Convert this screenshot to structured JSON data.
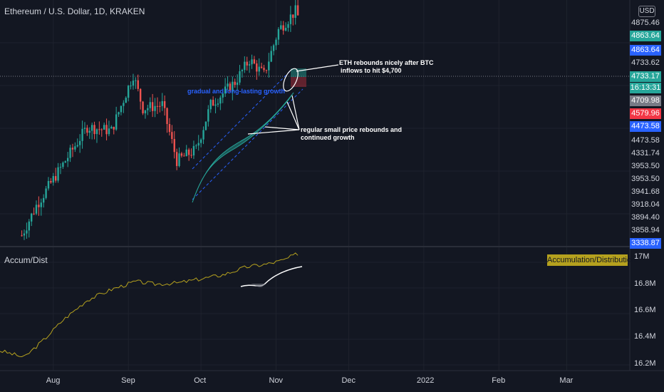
{
  "title": "Ethereum / U.S. Dollar, 1D, KRAKEN",
  "currency": "USD",
  "indicator": {
    "name": "Accum/Dist",
    "badge": "Accumulation/Distribution",
    "color": "#b5a11e"
  },
  "price_labels": [
    {
      "text": "4875.46",
      "bg": "",
      "color": "#d1d4dc"
    },
    {
      "text": "4863.64",
      "bg": "#26a69a",
      "color": "#ffffff"
    },
    {
      "text": "4863.64",
      "bg": "#2962ff",
      "color": "#ffffff"
    },
    {
      "text": "4733.62",
      "bg": "",
      "color": "#d1d4dc"
    },
    {
      "text": "4733.17",
      "bg": "#26a69a",
      "color": "#ffffff"
    },
    {
      "text": "16:13:31",
      "bg": "#26a69a",
      "color": "#ffffff"
    },
    {
      "text": "4709.98",
      "bg": "#787b86",
      "color": "#ffffff"
    },
    {
      "text": "4579.96",
      "bg": "#f23645",
      "color": "#ffffff"
    },
    {
      "text": "4473.58",
      "bg": "#2962ff",
      "color": "#ffffff"
    },
    {
      "text": "4473.58",
      "bg": "",
      "color": "#d1d4dc"
    },
    {
      "text": "4331.74",
      "bg": "",
      "color": "#d1d4dc"
    },
    {
      "text": "3953.50",
      "bg": "",
      "color": "#d1d4dc"
    },
    {
      "text": "3953.50",
      "bg": "",
      "color": "#d1d4dc"
    },
    {
      "text": "3941.68",
      "bg": "",
      "color": "#d1d4dc"
    },
    {
      "text": "3918.04",
      "bg": "",
      "color": "#d1d4dc"
    },
    {
      "text": "3894.40",
      "bg": "",
      "color": "#d1d4dc"
    },
    {
      "text": "3858.94",
      "bg": "",
      "color": "#d1d4dc"
    },
    {
      "text": "3338.87",
      "bg": "#2962ff",
      "color": "#ffffff"
    }
  ],
  "x_ticks": [
    "Aug",
    "Sep",
    "Oct",
    "Nov",
    "Dec",
    "2022",
    "Feb",
    "Mar"
  ],
  "ad_ticks": [
    "17M",
    "16.8M",
    "16.6M",
    "16.4M",
    "16.2M"
  ],
  "annotations": {
    "top": [
      "ETH rebounds nicely after BTC",
      "inflows to hit $4,700"
    ],
    "mid": [
      "regular small price rebounds and",
      "continued growth"
    ],
    "channel": "gradual and long-lasting growth"
  },
  "chart_data": [
    {
      "type": "candlestick",
      "title": "Ethereum / U.S. Dollar, 1D, KRAKEN",
      "x_range": [
        "2021-07-10",
        "2022-03-20"
      ],
      "approx_close_path": [
        {
          "x": "2021-07-19",
          "y": 1800
        },
        {
          "x": "2021-07-25",
          "y": 2200
        },
        {
          "x": "2021-08-01",
          "y": 2550
        },
        {
          "x": "2021-08-15",
          "y": 3250
        },
        {
          "x": "2021-08-25",
          "y": 3200
        },
        {
          "x": "2021-09-03",
          "y": 3950
        },
        {
          "x": "2021-09-07",
          "y": 3500
        },
        {
          "x": "2021-09-15",
          "y": 3550
        },
        {
          "x": "2021-09-21",
          "y": 2800
        },
        {
          "x": "2021-09-29",
          "y": 2950
        },
        {
          "x": "2021-10-05",
          "y": 3550
        },
        {
          "x": "2021-10-15",
          "y": 3850
        },
        {
          "x": "2021-10-21",
          "y": 4150
        },
        {
          "x": "2021-10-27",
          "y": 3950
        },
        {
          "x": "2021-11-02",
          "y": 4550
        },
        {
          "x": "2021-11-09",
          "y": 4800
        },
        {
          "x": "2021-11-10",
          "y": 4733
        }
      ]
    },
    {
      "type": "line",
      "series": [
        {
          "name": "Accum/Dist"
        }
      ],
      "ylim": [
        16150000,
        17050000
      ],
      "y_ticks": [
        17000000,
        16800000,
        16600000,
        16400000,
        16200000
      ],
      "points": [
        {
          "x": "2021-07-10",
          "y": 16300000
        },
        {
          "x": "2021-07-20",
          "y": 16250000
        },
        {
          "x": "2021-07-28",
          "y": 16380000
        },
        {
          "x": "2021-08-05",
          "y": 16530000
        },
        {
          "x": "2021-08-15",
          "y": 16680000
        },
        {
          "x": "2021-08-25",
          "y": 16760000
        },
        {
          "x": "2021-09-04",
          "y": 16820000
        },
        {
          "x": "2021-09-12",
          "y": 16800000
        },
        {
          "x": "2021-09-22",
          "y": 16810000
        },
        {
          "x": "2021-10-01",
          "y": 16840000
        },
        {
          "x": "2021-10-10",
          "y": 16870000
        },
        {
          "x": "2021-10-20",
          "y": 16930000
        },
        {
          "x": "2021-10-28",
          "y": 16950000
        },
        {
          "x": "2021-11-04",
          "y": 16980000
        },
        {
          "x": "2021-11-10",
          "y": 17030000
        }
      ]
    }
  ]
}
